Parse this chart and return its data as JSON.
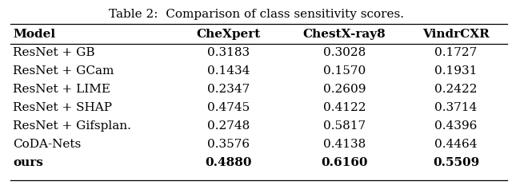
{
  "title": "Table 2:  Comparison of class sensitivity scores.",
  "columns": [
    "Model",
    "CheXpert",
    "ChestX-ray8",
    "VindrCXR"
  ],
  "rows": [
    [
      "ResNet + GB",
      "0.3183",
      "0.3028",
      "0.1727"
    ],
    [
      "ResNet + GCam",
      "0.1434",
      "0.1570",
      "0.1931"
    ],
    [
      "ResNet + LIME",
      "0.2347",
      "0.2609",
      "0.2422"
    ],
    [
      "ResNet + SHAP",
      "0.4745",
      "0.4122",
      "0.3714"
    ],
    [
      "ResNet + Gifsplan.",
      "0.2748",
      "0.5817",
      "0.4396"
    ],
    [
      "CoDA-Nets",
      "0.3576",
      "0.4138",
      "0.4464"
    ],
    [
      "ours",
      "0.4880",
      "0.6160",
      "0.5509"
    ]
  ],
  "bold_last_row": true,
  "figsize": [
    6.4,
    2.37
  ],
  "dpi": 100,
  "bg_color": "#ffffff",
  "header_bold": true,
  "font_size": 11.0,
  "title_font_size": 11.0
}
